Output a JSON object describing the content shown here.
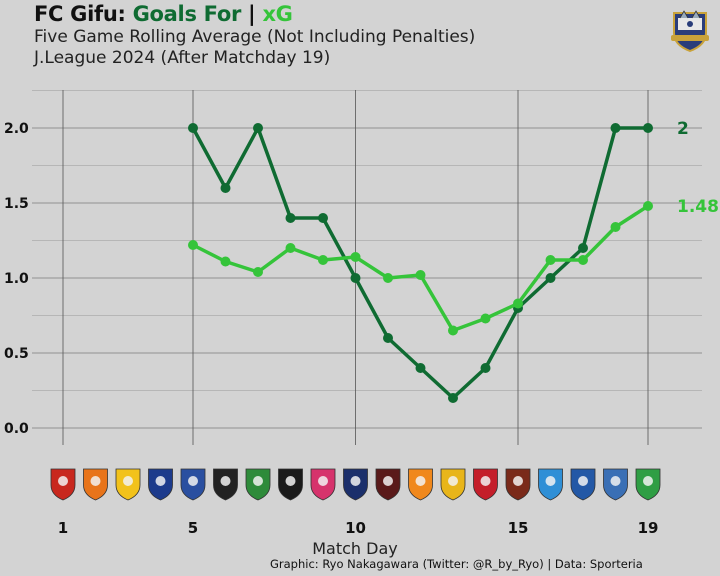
{
  "title": {
    "team": "FC Gifu:",
    "goals_for": "Goals For",
    "separator": "|",
    "xg": "xG"
  },
  "subtitle_line1": "Five Game Rolling Average (Not Including Penalties)",
  "subtitle_line2": "J.League 2024 (After Matchday 19)",
  "credit": "Graphic: Ryo Nakagawara (Twitter: @R_by_Ryo) | Data: Sporteria",
  "colors": {
    "background": "#d3d3d3",
    "goals_for": "#0f6b32",
    "xg": "#35c43a",
    "grid": "#8a8a8a"
  },
  "opponent_badges": [
    {
      "icon": "red-shield-badge",
      "color": "#c8281e"
    },
    {
      "icon": "orange-white-badge",
      "color": "#e8741a"
    },
    {
      "icon": "yellow-blue-badge",
      "color": "#f2c21b"
    },
    {
      "icon": "navy-ball-badge",
      "color": "#1d3b8c"
    },
    {
      "icon": "blue-yellow-badge",
      "color": "#2a4fa0"
    },
    {
      "icon": "black-white-badge",
      "color": "#222222"
    },
    {
      "icon": "green-badge",
      "color": "#2e8b3a"
    },
    {
      "icon": "black-green-badge",
      "color": "#1a1a1a"
    },
    {
      "icon": "pink-blue-badge",
      "color": "#d6336c"
    },
    {
      "icon": "navy-gold-badge",
      "color": "#1b2f6b"
    },
    {
      "icon": "fleur-de-lis-badge",
      "color": "#5a1a1a"
    },
    {
      "icon": "orange-navy-badge",
      "color": "#f0881c"
    },
    {
      "icon": "yellow-red-sun-badge",
      "color": "#e8b51a"
    },
    {
      "icon": "red-yellow-badge",
      "color": "#c41e2a"
    },
    {
      "icon": "maroon-gold-badge",
      "color": "#7a2a1a"
    },
    {
      "icon": "sky-blue-badge",
      "color": "#2f8fd6"
    },
    {
      "icon": "blue-yellow-oval-badge",
      "color": "#2358a6"
    },
    {
      "icon": "white-blue-wing-badge",
      "color": "#3a6fb5"
    },
    {
      "icon": "green-yellow-badge",
      "color": "#2f9e44"
    }
  ],
  "chart_data": {
    "type": "line",
    "xlabel": "Match Day",
    "ylabel": "",
    "x_ticks": [
      1,
      5,
      10,
      15,
      19
    ],
    "y_ticks": [
      "0.0",
      "0.5",
      "1.0",
      "1.5",
      "2.0"
    ],
    "xlim": [
      1,
      19
    ],
    "ylim": [
      0,
      2
    ],
    "grid": true,
    "series": [
      {
        "name": "Goals For",
        "color": "#0f6b32",
        "x": [
          5,
          6,
          7,
          8,
          9,
          10,
          11,
          12,
          13,
          14,
          15,
          16,
          17,
          18,
          19
        ],
        "values": [
          2.0,
          1.6,
          2.0,
          1.4,
          1.4,
          1.0,
          0.6,
          0.4,
          0.2,
          0.4,
          0.8,
          1.0,
          1.2,
          2.0,
          2.0
        ],
        "end_label": "2"
      },
      {
        "name": "xG",
        "color": "#35c43a",
        "x": [
          5,
          6,
          7,
          8,
          9,
          10,
          11,
          12,
          13,
          14,
          15,
          16,
          17,
          18,
          19
        ],
        "values": [
          1.22,
          1.11,
          1.04,
          1.2,
          1.12,
          1.14,
          1.0,
          1.02,
          0.65,
          0.73,
          0.83,
          1.12,
          1.12,
          1.34,
          1.48
        ],
        "end_label": "1.48"
      }
    ]
  }
}
